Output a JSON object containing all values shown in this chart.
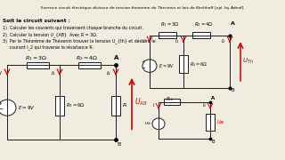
{
  "title_bar_color": "#d4a8d4",
  "bg_color": "#f0ede0",
  "white": "#ffffff",
  "lc": "#1a1a1a",
  "rc": "#cc0000",
  "lw": 0.7,
  "title_text": "Exercice circuit électrique diviseur de tension théorème de Thévenin et lois de Kirchhoff [upl. by Adnof]",
  "intro": "Soit le circuit suivant :",
  "q1": "1)  Calculer les courants qui traversent chaque branche du circuit.",
  "q2": "2)  Calculer la tension U_{AB}  Avec R = 3Ω.",
  "q3": "3)  Par le Théorème de Thévenin trouver la tension U_{th} et déduire le",
  "q3b": "     courant I_2 qui traverse la résistance R."
}
